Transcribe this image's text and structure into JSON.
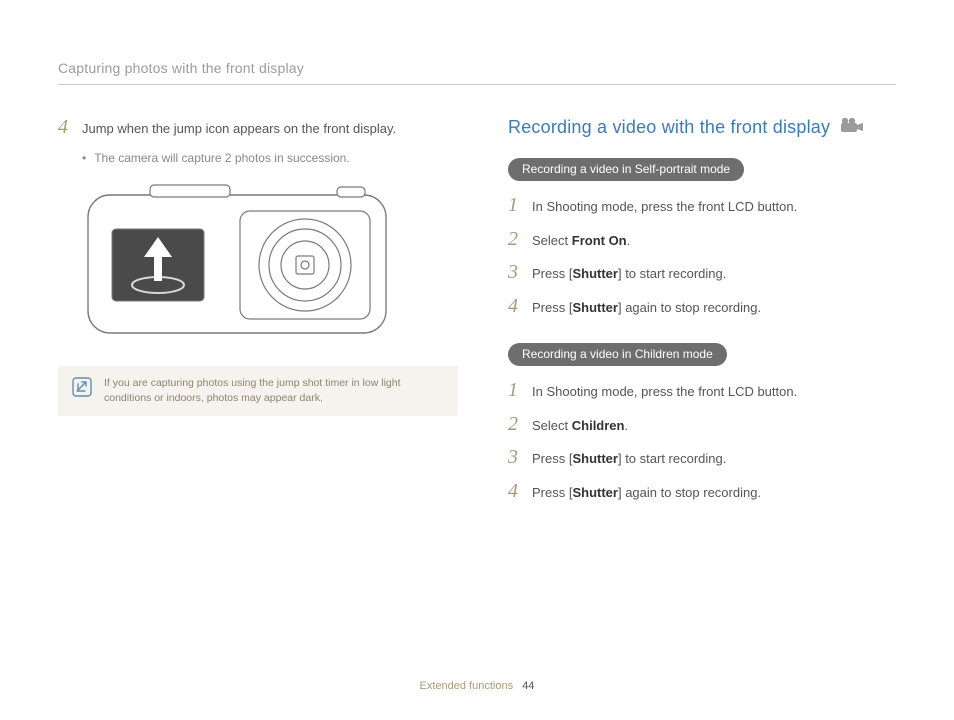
{
  "header": "Capturing photos with the front display",
  "left": {
    "step4": {
      "num": "4",
      "text": "Jump when the jump icon appears on the front display.",
      "bullet": "The camera will capture 2 photos in succession."
    },
    "note": "If you are capturing photos using the jump shot timer in low light conditions or indoors, photos may appear dark."
  },
  "right": {
    "title": "Recording a video with the front display",
    "groupA": {
      "pill": "Recording a video in Self-portrait mode",
      "steps": [
        {
          "num": "1",
          "pre": "In Shooting mode, press the front LCD button."
        },
        {
          "num": "2",
          "pre": "Select ",
          "bold": "Front On",
          "post": "."
        },
        {
          "num": "3",
          "pre": "Press [",
          "bold": "Shutter",
          "post": "] to start recording."
        },
        {
          "num": "4",
          "pre": "Press [",
          "bold": "Shutter",
          "post": "] again to stop recording."
        }
      ]
    },
    "groupB": {
      "pill": "Recording a video in Children mode",
      "steps": [
        {
          "num": "1",
          "pre": "In Shooting mode, press the front LCD button."
        },
        {
          "num": "2",
          "pre": "Select ",
          "bold": "Children",
          "post": "."
        },
        {
          "num": "3",
          "pre": "Press [",
          "bold": "Shutter",
          "post": "] to start recording."
        },
        {
          "num": "4",
          "pre": "Press [",
          "bold": "Shutter",
          "post": "] again to stop recording."
        }
      ]
    }
  },
  "footer": {
    "section": "Extended functions",
    "page": "44"
  },
  "colors": {
    "headerText": "#9b9b9b",
    "rule": "#cccccc",
    "stepNum": "#a8997a",
    "body": "#555555",
    "noteBg": "#f6f3ee",
    "noteText": "#8d8470",
    "titleBlue": "#3b7bb8",
    "pillBg": "#6e6e6e"
  }
}
